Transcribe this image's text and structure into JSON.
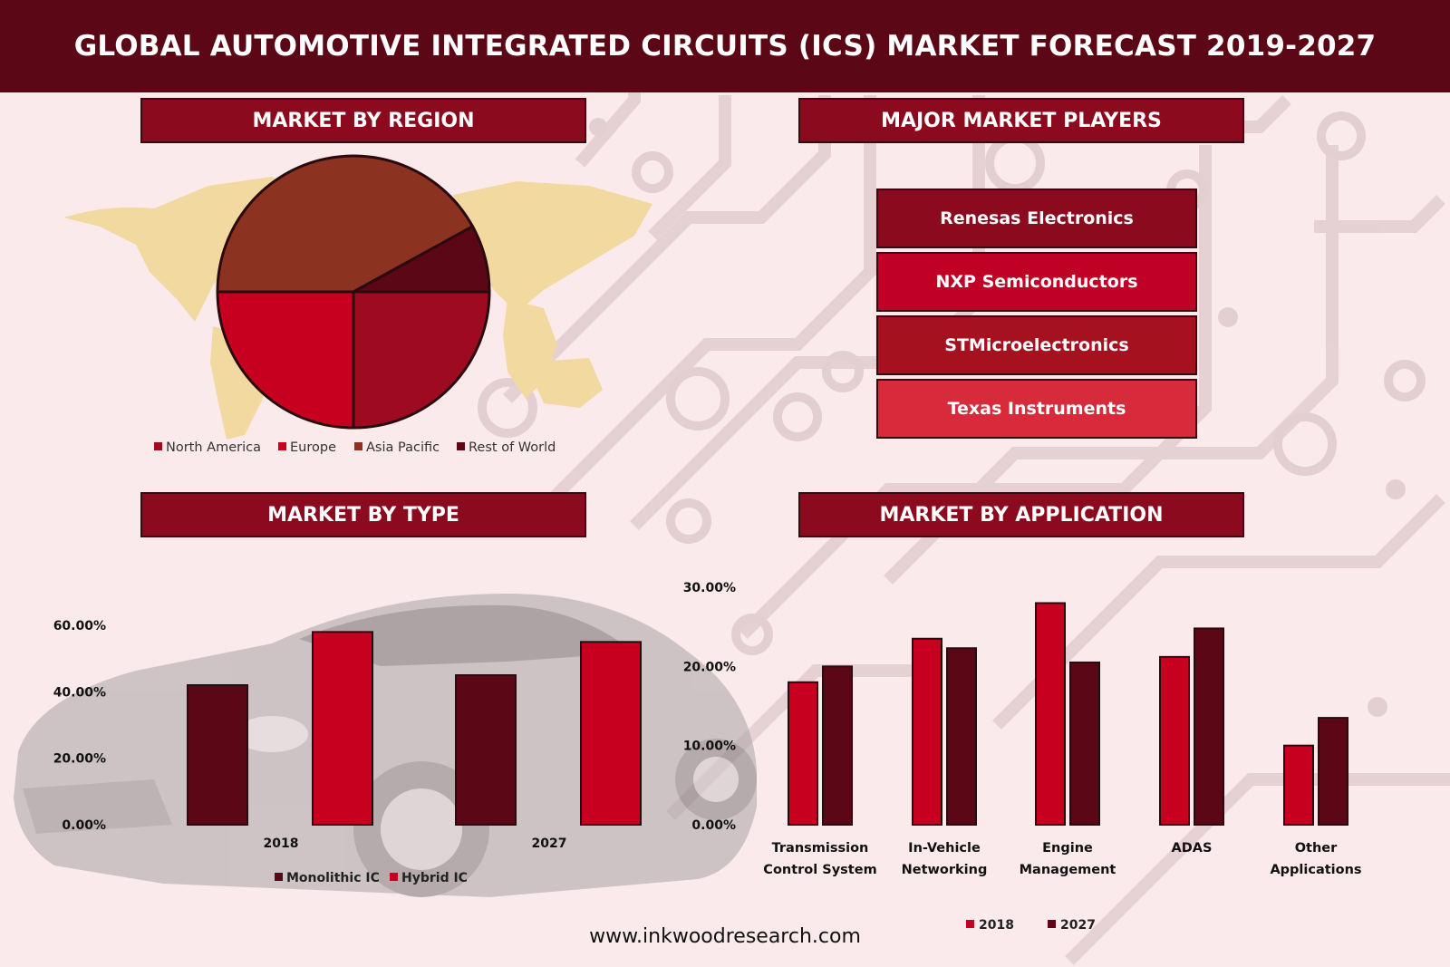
{
  "header": {
    "title": "GLOBAL AUTOMOTIVE INTEGRATED CIRCUITS (ICS) MARKET FORECAST 2019-2027"
  },
  "sections": {
    "region": "MARKET BY REGION",
    "players": "MAJOR MARKET PLAYERS",
    "type": "MARKET BY TYPE",
    "application": "MARKET BY APPLICATION"
  },
  "players": [
    {
      "name": "Renesas Electronics",
      "color": "#8b0a1e"
    },
    {
      "name": "NXP Semiconductors",
      "color": "#c10025"
    },
    {
      "name": "STMicroelectronics",
      "color": "#a5111f"
    },
    {
      "name": "Texas Instruments",
      "color": "#d72b3b"
    }
  ],
  "footer": {
    "url": "www.inkwoodresearch.com"
  },
  "chart_data": [
    {
      "type": "pie",
      "title": "",
      "slices": [
        {
          "label": "North America",
          "value": 25,
          "color": "#9e0a1f"
        },
        {
          "label": "Europe",
          "value": 25,
          "color": "#c8001f"
        },
        {
          "label": "Asia Pacific",
          "value": 42,
          "color": "#8b3220"
        },
        {
          "label": "Rest of World",
          "value": 8,
          "color": "#5c0716"
        }
      ],
      "legend_position": "bottom"
    },
    {
      "type": "bar",
      "title": "",
      "categories": [
        "2018",
        "2027"
      ],
      "series": [
        {
          "name": "Monolithic IC",
          "values": [
            42,
            45
          ],
          "color": "#5c0716"
        },
        {
          "name": "Hybrid IC",
          "values": [
            58,
            55
          ],
          "color": "#c8001f"
        }
      ],
      "yticks": [
        "0.00%",
        "20.00%",
        "40.00%",
        "60.00%"
      ],
      "ylim": [
        0,
        60
      ],
      "legend_position": "bottom",
      "grid": false
    },
    {
      "type": "bar",
      "title": "",
      "categories": [
        [
          "Transmission",
          "Control System"
        ],
        [
          "In-Vehicle",
          "Networking"
        ],
        [
          "Engine",
          "Management"
        ],
        [
          "ADAS"
        ],
        [
          "Other",
          "Applications"
        ]
      ],
      "series": [
        {
          "name": "2018",
          "values": [
            18,
            23.5,
            28,
            21.2,
            10
          ],
          "color": "#c8001f"
        },
        {
          "name": "2027",
          "values": [
            20,
            22.3,
            20.5,
            24.8,
            13.5
          ],
          "color": "#5c0716"
        }
      ],
      "yticks": [
        "0.00%",
        "10.00%",
        "20.00%",
        "30.00%"
      ],
      "ylim": [
        0,
        30
      ],
      "legend_position": "bottom",
      "grid": false
    }
  ]
}
